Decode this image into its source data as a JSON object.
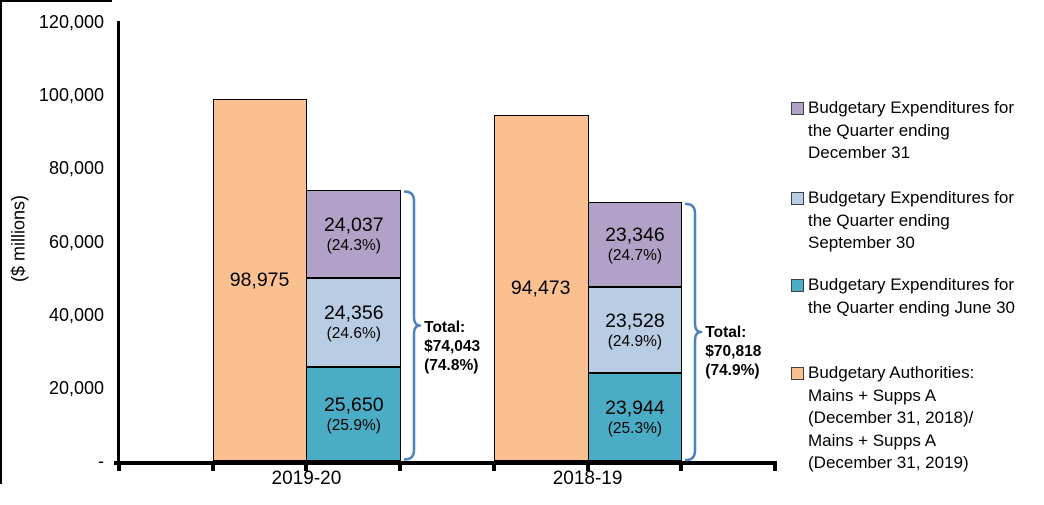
{
  "chart_data": {
    "type": "bar",
    "subtype": "authorities-vs-stacked-expenditures",
    "title": "",
    "ylabel": "($ millions)",
    "ylim": [
      0,
      120000
    ],
    "grid": false,
    "legend_position": "right",
    "categories": [
      "2019-20",
      "2018-19"
    ],
    "y_ticks": [
      {
        "value": 120000,
        "label": "120,000"
      },
      {
        "value": 100000,
        "label": "100,000"
      },
      {
        "value": 80000,
        "label": "80,000"
      },
      {
        "value": 60000,
        "label": "60,000"
      },
      {
        "value": 40000,
        "label": "40,000"
      },
      {
        "value": 20000,
        "label": "20,000"
      },
      {
        "value": 0,
        "label": "-"
      }
    ],
    "authorities_series": {
      "name": "Budgetary Authorities: Mains + Supps A (December 31, 2018)/ Mains + Supps A (December 31, 2019)",
      "color": "#FAC090",
      "values": [
        98975,
        94473
      ],
      "labels": [
        "98,975",
        "94,473"
      ]
    },
    "expenditure_series": [
      {
        "name": "Budgetary Expenditures for the Quarter ending June 30",
        "color": "#4BACC6",
        "values": [
          25650,
          23944
        ],
        "labels": [
          "25,650",
          "23,944"
        ],
        "pct_labels": [
          "(25.9%)",
          "(25.3%)"
        ]
      },
      {
        "name": "Budgetary Expenditures for the Quarter ending September 30",
        "color": "#B8CCE4",
        "values": [
          24356,
          23528
        ],
        "labels": [
          "24,356",
          "23,528"
        ],
        "pct_labels": [
          "(24.6%)",
          "(24.9%)"
        ]
      },
      {
        "name": "Budgetary Expenditures for the Quarter ending December 31",
        "color": "#B2A1C7",
        "values": [
          24037,
          23346
        ],
        "labels": [
          "24,037",
          "23,346"
        ],
        "pct_labels": [
          "(24.3%)",
          "(24.7%)"
        ]
      }
    ],
    "totals": [
      {
        "category": "2019-20",
        "value": 74043,
        "lines": [
          "Total:",
          "$74,043",
          "(74.8%)"
        ]
      },
      {
        "category": "2018-19",
        "value": 70818,
        "lines": [
          "Total:",
          "$70,818",
          "(74.9%)"
        ]
      }
    ],
    "legend": [
      {
        "label": "Budgetary Expenditures for the Quarter ending December 31",
        "color": "#B2A1C7"
      },
      {
        "label": "Budgetary Expenditures for the Quarter ending September 30",
        "color": "#B8CCE4"
      },
      {
        "label": "Budgetary Expenditures for the Quarter ending June 30",
        "color": "#4BACC6"
      },
      {
        "label": "Budgetary Authorities: Mains + Supps A (December 31, 2018)/ Mains + Supps A (December 31, 2019)",
        "color": "#FAC090"
      }
    ],
    "brace_color": "#4F81BD",
    "axis_color": "#000000"
  }
}
